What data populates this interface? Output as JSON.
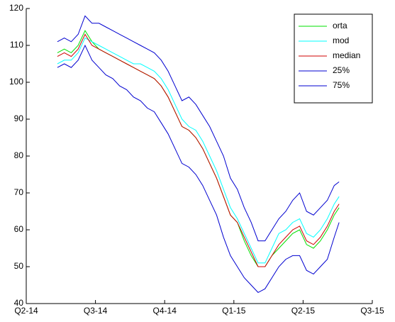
{
  "chart_data": {
    "type": "line",
    "x": [
      0.45,
      0.55,
      0.65,
      0.75,
      0.85,
      0.95,
      1.05,
      1.15,
      1.25,
      1.35,
      1.45,
      1.55,
      1.65,
      1.75,
      1.85,
      1.95,
      2.05,
      2.15,
      2.25,
      2.35,
      2.45,
      2.55,
      2.65,
      2.75,
      2.85,
      2.95,
      3.05,
      3.15,
      3.25,
      3.35,
      3.45,
      3.55,
      3.65,
      3.75,
      3.85,
      3.95,
      4.05,
      4.15,
      4.25,
      4.35,
      4.45,
      4.52
    ],
    "series": [
      {
        "name": "orta",
        "color": "#00e000",
        "values": [
          108,
          109,
          108,
          110,
          114,
          111,
          109,
          108,
          107,
          106,
          105,
          104,
          103,
          102,
          101,
          99,
          96,
          92,
          88,
          87,
          85,
          82,
          78,
          74,
          69,
          64,
          62,
          57,
          53,
          50,
          50,
          53,
          55,
          57,
          59,
          60,
          56,
          55,
          57,
          60,
          64,
          66
        ]
      },
      {
        "name": "mod",
        "color": "#00ffff",
        "values": [
          105,
          106,
          106,
          108,
          112,
          111,
          110,
          109,
          108,
          107,
          106,
          105,
          105,
          104,
          103,
          101,
          98,
          94,
          90,
          88,
          87,
          84,
          80,
          76,
          71,
          66,
          63,
          59,
          55,
          51,
          51,
          55,
          59,
          60,
          62,
          63,
          59,
          58,
          60,
          63,
          67,
          69
        ]
      },
      {
        "name": "median",
        "color": "#d00000",
        "values": [
          107,
          108,
          107,
          109,
          113,
          110,
          109,
          108,
          107,
          106,
          105,
          104,
          103,
          102,
          101,
          99,
          96,
          92,
          88,
          87,
          85,
          82,
          78,
          74,
          69,
          64,
          62,
          58,
          54,
          50,
          50,
          53,
          56,
          58,
          60,
          61,
          57,
          56,
          58,
          61,
          65,
          67
        ]
      },
      {
        "name": "25%",
        "color": "#0000d0",
        "values": [
          104,
          105,
          104,
          106,
          110,
          106,
          104,
          102,
          101,
          99,
          98,
          96,
          95,
          93,
          92,
          89,
          86,
          82,
          78,
          77,
          75,
          72,
          68,
          64,
          58,
          53,
          50,
          47,
          45,
          43,
          44,
          47,
          50,
          52,
          53,
          53,
          49,
          48,
          50,
          52,
          58,
          62
        ]
      },
      {
        "name": "75%",
        "color": "#0000d0",
        "values": [
          111,
          112,
          111,
          113,
          118,
          116,
          116,
          115,
          114,
          113,
          112,
          111,
          110,
          109,
          108,
          106,
          103,
          99,
          95,
          96,
          94,
          91,
          88,
          84,
          80,
          74,
          71,
          66,
          62,
          57,
          57,
          60,
          63,
          65,
          68,
          70,
          65,
          64,
          66,
          68,
          72,
          73
        ]
      }
    ],
    "xlim": [
      0,
      5
    ],
    "xticks": [
      {
        "value": 0,
        "label": "Q2-14"
      },
      {
        "value": 1,
        "label": "Q3-14"
      },
      {
        "value": 2,
        "label": "Q4-14"
      },
      {
        "value": 3,
        "label": "Q1-15"
      },
      {
        "value": 4,
        "label": "Q2-15"
      },
      {
        "value": 5,
        "label": "Q3-15"
      }
    ],
    "ylim": [
      40,
      120
    ],
    "yticks": [
      40,
      50,
      60,
      70,
      80,
      90,
      100,
      110,
      120
    ],
    "grid": false,
    "legend": "top-right"
  }
}
